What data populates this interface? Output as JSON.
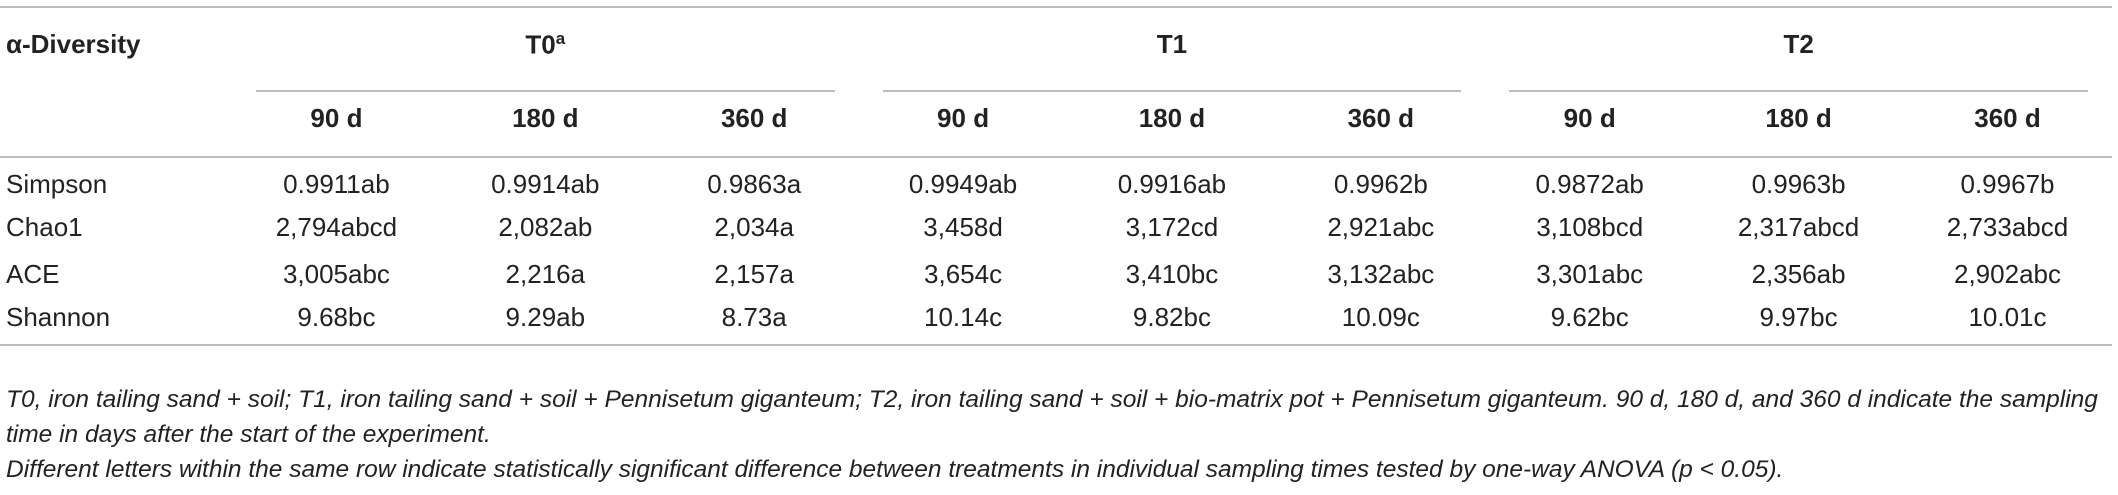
{
  "table": {
    "corner": "α-Diversity",
    "groups": [
      {
        "label": "T0",
        "sup": "a"
      },
      {
        "label": "T1"
      },
      {
        "label": "T2"
      }
    ],
    "subheaders": [
      "90 d",
      "180 d",
      "360 d",
      "90 d",
      "180 d",
      "360 d",
      "90 d",
      "180 d",
      "360 d"
    ],
    "rows": [
      [
        "Simpson",
        "0.9911ab",
        "0.9914ab",
        "0.9863a",
        "0.9949ab",
        "0.9916ab",
        "0.9962b",
        "0.9872ab",
        "0.9963b",
        "0.9967b"
      ],
      [
        "Chao1",
        "2,794abcd",
        "2,082ab",
        "2,034a",
        "3,458d",
        "3,172cd",
        "2,921abc",
        "3,108bcd",
        "2,317abcd",
        "2,733abcd"
      ],
      [
        "ACE",
        "3,005abc",
        "2,216a",
        "2,157a",
        "3,654c",
        "3,410bc",
        "3,132abc",
        "3,301abc",
        "2,356ab",
        "2,902abc"
      ],
      [
        "Shannon",
        "9.68bc",
        "9.29ab",
        "8.73a",
        "10.14c",
        "9.82bc",
        "10.09c",
        "9.62bc",
        "9.97bc",
        "10.01c"
      ]
    ]
  },
  "footnotes": [
    "T0, iron tailing sand + soil; T1, iron tailing sand + soil + Pennisetum giganteum; T2, iron tailing sand + soil + bio-matrix pot + Pennisetum giganteum. 90 d, 180 d, and 360 d indicate the sampling time in days after the start of the experiment.",
    "Different letters within the same row indicate statistically significant difference between treatments in individual sampling times tested by one-way ANOVA (p < 0.05)."
  ]
}
